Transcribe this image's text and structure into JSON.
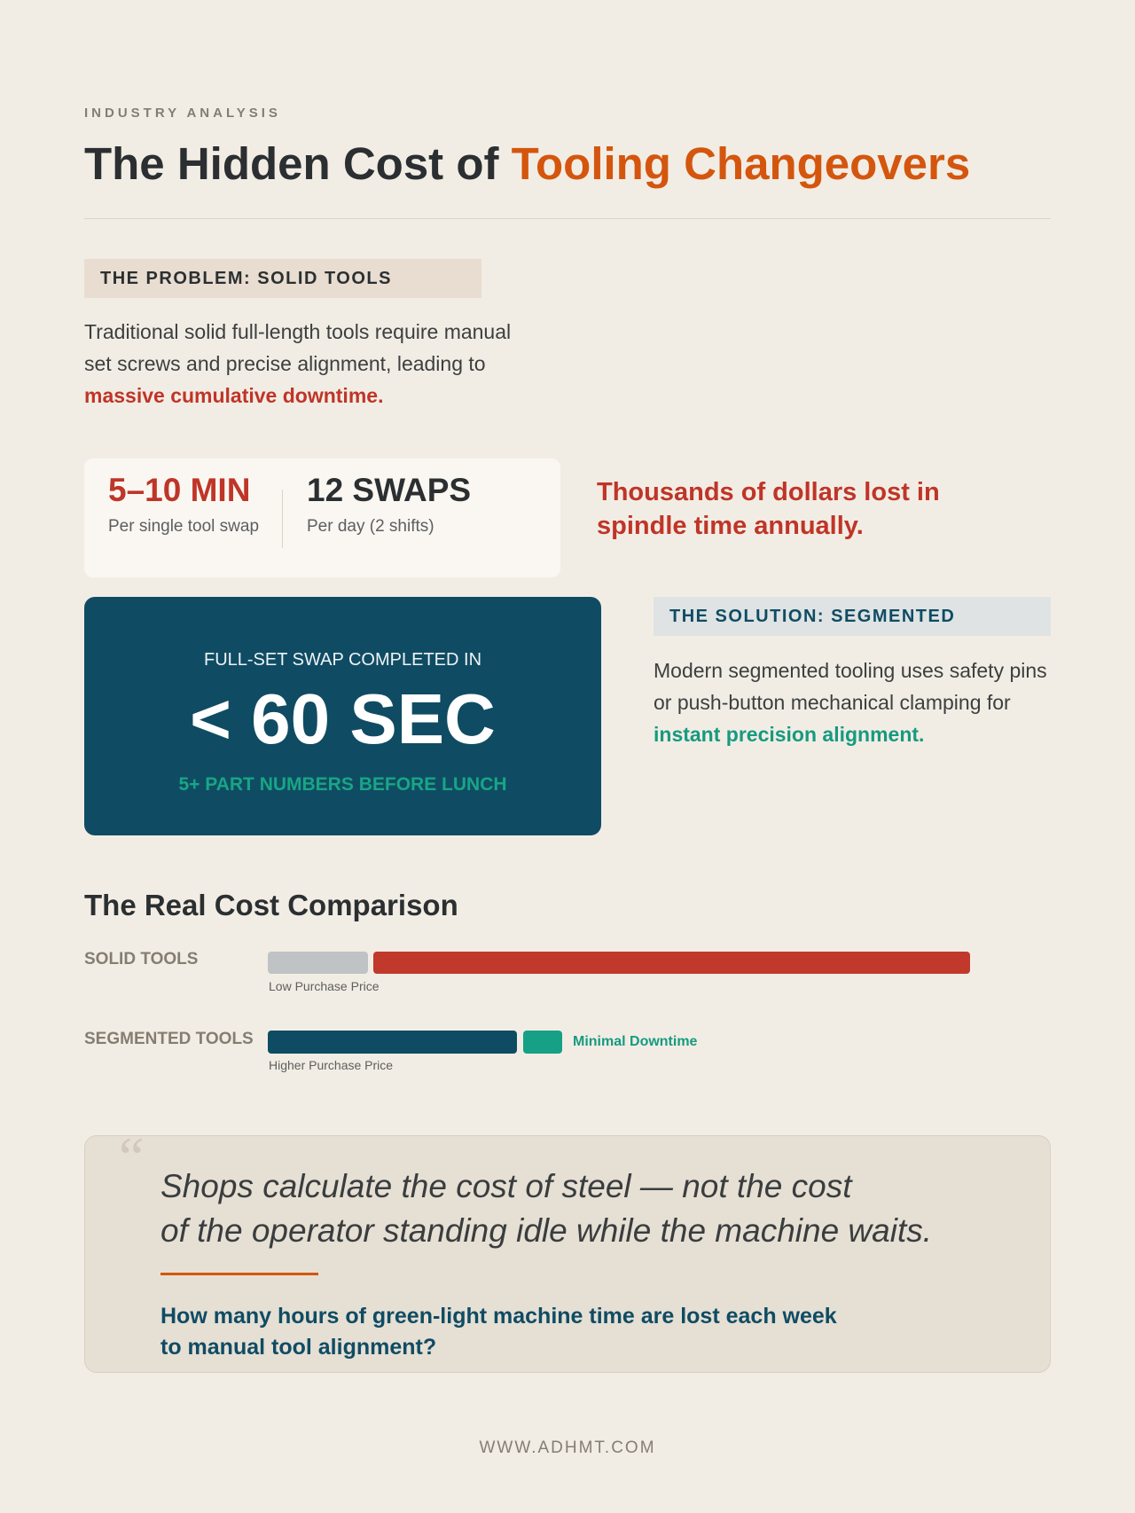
{
  "header": {
    "eyebrow": "INDUSTRY ANALYSIS",
    "title_part1": "The Hidden Cost of ",
    "title_accent": "Tooling Changeovers"
  },
  "problem": {
    "tag": "THE PROBLEM: SOLID TOOLS",
    "line1": "Traditional solid full-length tools require manual",
    "line2": "set screws and precise alignment, leading to",
    "highlight": "massive cumulative downtime."
  },
  "stats": [
    {
      "value": "5–10 MIN",
      "label": "Per single tool swap"
    },
    {
      "value": "12 SWAPS",
      "label": "Per day (2 shifts)"
    }
  ],
  "loss": {
    "line1": "Thousands of dollars lost in",
    "line2": "spindle time annually."
  },
  "hero": {
    "caption": "FULL-SET SWAP COMPLETED IN",
    "value": "< 60 SEC",
    "subcaption": "5+ PART NUMBERS BEFORE LUNCH"
  },
  "solution": {
    "tag": "THE SOLUTION: SEGMENTED",
    "line1": "Modern segmented tooling uses safety pins",
    "line2": "or push-button mechanical clamping for",
    "highlight": "instant precision alignment."
  },
  "comparison": {
    "title": "The Real Cost Comparison",
    "rows": [
      {
        "label": "SOLID TOOLS",
        "caption": "Low Purchase Price"
      },
      {
        "label": "SEGMENTED TOOLS",
        "caption": "Higher Purchase Price",
        "downtime_label": "Minimal Downtime"
      }
    ],
    "colors": {
      "purchase_low": "#bfc3c6",
      "downtime_high": "#c0392b",
      "purchase_high": "#0f4c63",
      "downtime_low": "#16a085"
    }
  },
  "quote": {
    "line1": "Shops calculate the cost of steel — not the cost",
    "line2": "of the operator standing idle while the machine waits.",
    "question1": "How many hours of green-light machine time are lost each week",
    "question2": "to manual tool alignment?"
  },
  "footer": {
    "url": "WWW.ADHMT.COM"
  },
  "colors": {
    "accent": "#d4560e",
    "navy": "#0f4c63",
    "red": "#bf3528",
    "teal": "#169a80",
    "background": "#f2ede4"
  }
}
